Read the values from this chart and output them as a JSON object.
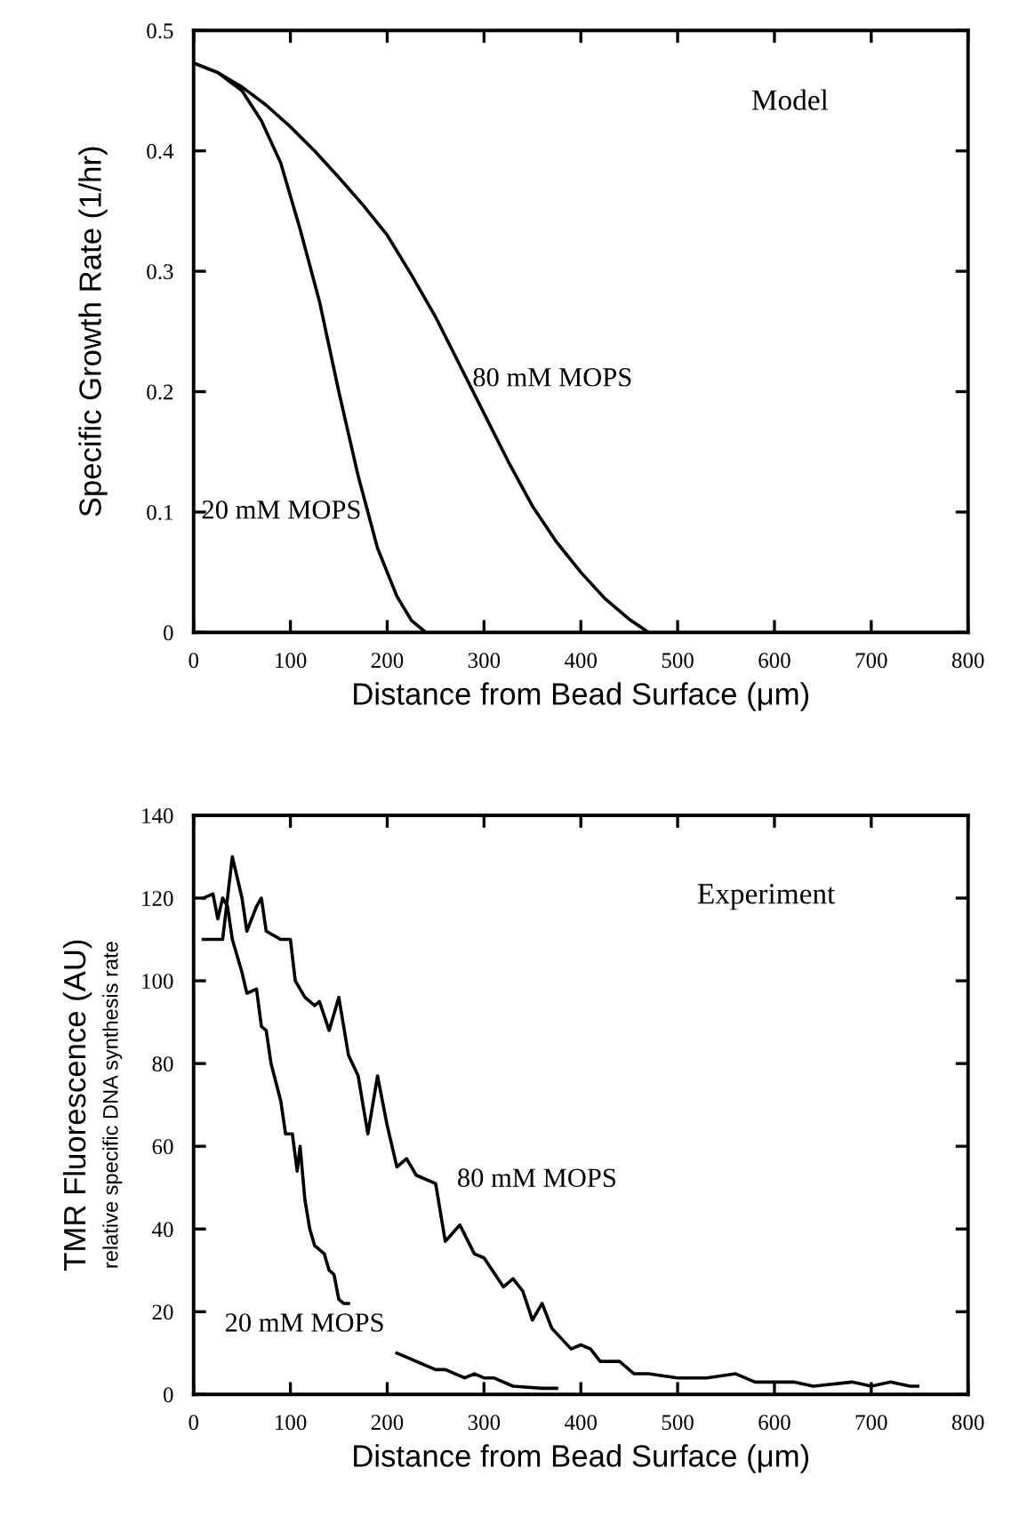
{
  "chart_data": [
    {
      "type": "line",
      "xlabel": "Distance from Bead Surface (μm)",
      "ylabel": "Specific Growth Rate (1/hr)",
      "annotations": [
        "Model"
      ],
      "xlim": [
        0,
        800
      ],
      "xticks": [
        0,
        100,
        200,
        300,
        400,
        500,
        600,
        700,
        800
      ],
      "ylim": [
        0,
        0.5
      ],
      "yticks": [
        0,
        0.1,
        0.2,
        0.3,
        0.4,
        0.5
      ],
      "grid": false,
      "legend": false,
      "marker": "none",
      "line_style": "solid",
      "series": [
        {
          "name": "80 mM MOPS",
          "color": "#000000",
          "x": [
            0,
            25,
            50,
            75,
            100,
            125,
            150,
            175,
            200,
            225,
            250,
            275,
            300,
            325,
            350,
            375,
            400,
            425,
            450,
            470
          ],
          "values": [
            0.473,
            0.465,
            0.453,
            0.438,
            0.42,
            0.4,
            0.378,
            0.355,
            0.33,
            0.297,
            0.262,
            0.222,
            0.182,
            0.142,
            0.105,
            0.075,
            0.05,
            0.028,
            0.011,
            0
          ]
        },
        {
          "name": "20 mM MOPS",
          "color": "#000000",
          "x": [
            0,
            25,
            50,
            70,
            90,
            110,
            130,
            150,
            170,
            190,
            210,
            225,
            240
          ],
          "values": [
            0.473,
            0.465,
            0.45,
            0.425,
            0.39,
            0.335,
            0.275,
            0.2,
            0.13,
            0.07,
            0.03,
            0.01,
            0
          ]
        }
      ]
    },
    {
      "type": "line",
      "xlabel": "Distance from Bead Surface (μm)",
      "ylabel": "TMR Fluorescence (AU)\nrelative specific DNA synthesis rate",
      "annotations": [
        "Experiment"
      ],
      "xlim": [
        0,
        800
      ],
      "xticks": [
        0,
        100,
        200,
        300,
        400,
        500,
        600,
        700,
        800
      ],
      "ylim": [
        0,
        140
      ],
      "yticks": [
        0,
        20,
        40,
        60,
        80,
        100,
        120,
        140
      ],
      "grid": false,
      "legend": false,
      "marker": "none",
      "line_style": "solid",
      "series": [
        {
          "name": "80 mM MOPS",
          "color": "#000000",
          "x": [
            10,
            30,
            40,
            50,
            55,
            65,
            70,
            75,
            90,
            100,
            105,
            115,
            125,
            130,
            140,
            150,
            160,
            170,
            180,
            190,
            200,
            210,
            220,
            230,
            250,
            260,
            275,
            290,
            300,
            320,
            330,
            340,
            350,
            360,
            370,
            390,
            400,
            410,
            420,
            440,
            455,
            470,
            500,
            530,
            560,
            580,
            620,
            640,
            680,
            700,
            720,
            740,
            748
          ],
          "values": [
            110,
            110,
            130,
            120,
            112,
            118,
            120,
            112,
            110,
            110,
            100,
            96,
            94,
            95,
            88,
            96,
            82,
            77,
            63,
            77,
            65,
            55,
            57,
            53,
            51,
            37,
            41,
            34,
            33,
            26,
            28,
            25,
            18,
            22,
            16,
            11,
            12,
            11,
            8,
            8,
            5,
            5,
            4,
            4,
            5,
            3,
            3,
            2,
            3,
            2,
            3,
            2,
            2
          ]
        },
        {
          "name": "20 mM MOPS",
          "color": "#000000",
          "x": [
            10,
            20,
            25,
            30,
            35,
            40,
            50,
            55,
            65,
            70,
            75,
            80,
            90,
            95,
            102,
            107,
            110,
            115,
            120,
            125,
            135,
            140,
            145,
            150,
            155,
            160,
            185,
            210,
            220,
            230,
            250,
            260,
            280,
            290,
            300,
            310,
            330,
            360,
            375
          ],
          "values": [
            120,
            121,
            115,
            120,
            118,
            110,
            102,
            97,
            98,
            89,
            88,
            80,
            71,
            63,
            63,
            54,
            60,
            47,
            40,
            36,
            34,
            30,
            29,
            23,
            22,
            22,
            null,
            10,
            9,
            8,
            6,
            6,
            4,
            5,
            4,
            4,
            2,
            1.5,
            1.5
          ]
        }
      ]
    }
  ]
}
